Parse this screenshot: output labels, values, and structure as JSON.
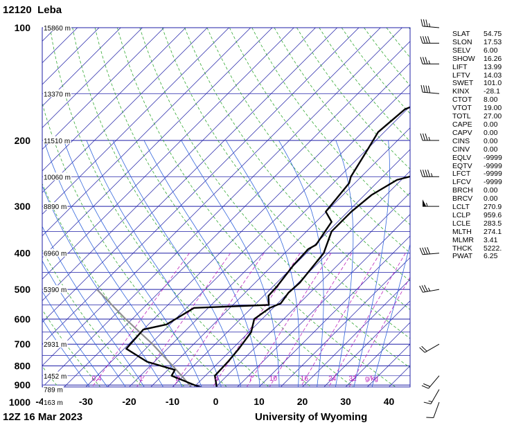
{
  "header": {
    "station_id": "12120",
    "station_name": "Leba"
  },
  "footer": {
    "datetime": "12Z 16 Mar 2023",
    "source": "University of Wyoming"
  },
  "chart_data": {
    "type": "line",
    "chart_kind": "skew-T log-P sounding",
    "x_range_celsius": [
      -40,
      45
    ],
    "x_tick_labels": [
      "-40",
      "-30",
      "-20",
      "-10",
      "0",
      "10",
      "20",
      "30",
      "40"
    ],
    "y_scale": "log pressure",
    "y_range_hpa": [
      1050,
      100
    ],
    "y_tick_labels": [
      "100",
      "200",
      "300",
      "400",
      "500",
      "600",
      "700",
      "800",
      "900",
      "1000"
    ],
    "height_labels": [
      {
        "p": 100,
        "text": "15860 m"
      },
      {
        "p": 150,
        "text": "13370 m"
      },
      {
        "p": 200,
        "text": "11510 m"
      },
      {
        "p": 250,
        "text": "10060 m"
      },
      {
        "p": 300,
        "text": "8890 m"
      },
      {
        "p": 400,
        "text": "6960 m"
      },
      {
        "p": 500,
        "text": "5390 m"
      },
      {
        "p": 700,
        "text": "2931 m"
      },
      {
        "p": 850,
        "text": "1452 m"
      },
      {
        "p": 925,
        "text": "789 m"
      },
      {
        "p": 1000,
        "text": "163 m"
      }
    ],
    "mixing_ratio_labels": [
      {
        "w": 0.4,
        "text": "0.4"
      },
      {
        "w": 1,
        "text": "1"
      },
      {
        "w": 2,
        "text": "2"
      },
      {
        "w": 4,
        "text": "4"
      },
      {
        "w": 7,
        "text": "7"
      },
      {
        "w": 10,
        "text": "10"
      },
      {
        "w": 16,
        "text": "16"
      },
      {
        "w": 24,
        "text": "24"
      },
      {
        "w": 32,
        "text": "32"
      }
    ],
    "mixing_ratio_unit": "g/kg",
    "series": [
      {
        "name": "",
        "role": "dewpoint",
        "points": [
          {
            "p": 1012,
            "t": -2.2
          },
          {
            "p": 1000,
            "t": -2.4
          },
          {
            "p": 970,
            "t": -1.6
          },
          {
            "p": 925,
            "t": -1.3
          },
          {
            "p": 900,
            "t": -5.4
          },
          {
            "p": 850,
            "t": -12.8
          },
          {
            "p": 820,
            "t": -13.4
          },
          {
            "p": 780,
            "t": -21.7
          },
          {
            "p": 720,
            "t": -29.5
          },
          {
            "p": 640,
            "t": -30.0
          },
          {
            "p": 620,
            "t": -25.8
          },
          {
            "p": 560,
            "t": -23.3
          },
          {
            "p": 550,
            "t": -6.7
          },
          {
            "p": 520,
            "t": -8.9
          },
          {
            "p": 490,
            "t": -9.1
          },
          {
            "p": 430,
            "t": -10.2
          },
          {
            "p": 390,
            "t": -10.5
          },
          {
            "p": 380,
            "t": -9.7
          },
          {
            "p": 330,
            "t": -11.4
          },
          {
            "p": 310,
            "t": -15.1
          },
          {
            "p": 260,
            "t": -16.3
          },
          {
            "p": 250,
            "t": -17.4
          },
          {
            "p": 210,
            "t": -19.9
          },
          {
            "p": 190,
            "t": -21.4
          },
          {
            "p": 165,
            "t": -20.5
          },
          {
            "p": 145,
            "t": -12.8
          },
          {
            "p": 125,
            "t": -12.0
          },
          {
            "p": 113,
            "t": -7.2
          },
          {
            "p": 100,
            "t": -4.3
          }
        ]
      },
      {
        "name": "",
        "role": "temperature",
        "points": [
          {
            "p": 1012,
            "t": 5.3
          },
          {
            "p": 1000,
            "t": 1.8
          },
          {
            "p": 970,
            "t": 1.9
          },
          {
            "p": 940,
            "t": 0.9
          },
          {
            "p": 925,
            "t": 0.9
          },
          {
            "p": 900,
            "t": -0.3
          },
          {
            "p": 850,
            "t": -2.8
          },
          {
            "p": 780,
            "t": -3.0
          },
          {
            "p": 720,
            "t": -3.5
          },
          {
            "p": 650,
            "t": -4.5
          },
          {
            "p": 600,
            "t": -6.8
          },
          {
            "p": 560,
            "t": -5.8
          },
          {
            "p": 545,
            "t": -4.3
          },
          {
            "p": 510,
            "t": -5.0
          },
          {
            "p": 480,
            "t": -4.7
          },
          {
            "p": 400,
            "t": -6.0
          },
          {
            "p": 350,
            "t": -9.2
          },
          {
            "p": 310,
            "t": -9.2
          },
          {
            "p": 280,
            "t": -8.4
          },
          {
            "p": 255,
            "t": -6.0
          },
          {
            "p": 230,
            "t": 5.2
          },
          {
            "p": 210,
            "t": 7.8
          },
          {
            "p": 190,
            "t": 8.0
          },
          {
            "p": 170,
            "t": 9.6
          },
          {
            "p": 150,
            "t": 20.7
          },
          {
            "p": 130,
            "t": 20.8
          },
          {
            "p": 120,
            "t": 23.5
          },
          {
            "p": 110,
            "t": 25.7
          },
          {
            "p": 100,
            "t": 25.1
          }
        ]
      }
    ],
    "parcel_path": [
      {
        "p": 1000,
        "t": 1.8
      },
      {
        "p": 959.6,
        "t": -2.3
      },
      {
        "p": 900,
        "t": -6.5
      },
      {
        "p": 850,
        "t": -10.5
      },
      {
        "p": 800,
        "t": -14.8
      },
      {
        "p": 700,
        "t": -24.5
      },
      {
        "p": 600,
        "t": -36.5
      },
      {
        "p": 500,
        "t": -50
      }
    ],
    "wind_barbs": [
      {
        "p": 1000,
        "dir": 200,
        "spd": 10
      },
      {
        "p": 925,
        "dir": 210,
        "spd": 15
      },
      {
        "p": 850,
        "dir": 220,
        "spd": 20
      },
      {
        "p": 700,
        "dir": 240,
        "spd": 20
      },
      {
        "p": 500,
        "dir": 260,
        "spd": 35
      },
      {
        "p": 400,
        "dir": 265,
        "spd": 40
      },
      {
        "p": 300,
        "dir": 270,
        "spd": 55
      },
      {
        "p": 250,
        "dir": 270,
        "spd": 45
      },
      {
        "p": 200,
        "dir": 270,
        "spd": 35
      },
      {
        "p": 150,
        "dir": 275,
        "spd": 40
      },
      {
        "p": 125,
        "dir": 270,
        "spd": 35
      },
      {
        "p": 110,
        "dir": 270,
        "spd": 40
      },
      {
        "p": 100,
        "dir": 275,
        "spd": 35
      }
    ]
  },
  "indices": [
    {
      "key": "SLAT",
      "value": "54.75"
    },
    {
      "key": "SLON",
      "value": "17.53"
    },
    {
      "key": "SELV",
      "value": "6.00"
    },
    {
      "key": "SHOW",
      "value": "16.26"
    },
    {
      "key": "LIFT",
      "value": "13.99"
    },
    {
      "key": "LFTV",
      "value": "14.03"
    },
    {
      "key": "SWET",
      "value": "101.0"
    },
    {
      "key": "KINX",
      "value": "-28.1"
    },
    {
      "key": "CTOT",
      "value": "8.00"
    },
    {
      "key": "VTOT",
      "value": "19.00"
    },
    {
      "key": "TOTL",
      "value": "27.00"
    },
    {
      "key": "CAPE",
      "value": "0.00"
    },
    {
      "key": "CAPV",
      "value": "0.00"
    },
    {
      "key": "CINS",
      "value": "0.00"
    },
    {
      "key": "CINV",
      "value": "0.00"
    },
    {
      "key": "EQLV",
      "value": "-9999"
    },
    {
      "key": "EQTV",
      "value": "-9999"
    },
    {
      "key": "LFCT",
      "value": "-9999"
    },
    {
      "key": "LFCV",
      "value": "-9999"
    },
    {
      "key": "BRCH",
      "value": "0.00"
    },
    {
      "key": "BRCV",
      "value": "0.00"
    },
    {
      "key": "LCLT",
      "value": "270.9"
    },
    {
      "key": "LCLP",
      "value": "959.6"
    },
    {
      "key": "LCLE",
      "value": "283.5"
    },
    {
      "key": "MLTH",
      "value": "274.1"
    },
    {
      "key": "MLMR",
      "value": "3.41"
    },
    {
      "key": "THCK",
      "value": "5222."
    },
    {
      "key": "PWAT",
      "value": "6.25"
    }
  ],
  "colors": {
    "isobar": "#1c1ca6",
    "isotherm": "#1c1ca6",
    "dry_adiabat": "#33a833",
    "moist_adiabat": "#3366dd",
    "mixing_ratio": "#bb22bb",
    "sounding": "#000000",
    "parcel": "#909090"
  }
}
